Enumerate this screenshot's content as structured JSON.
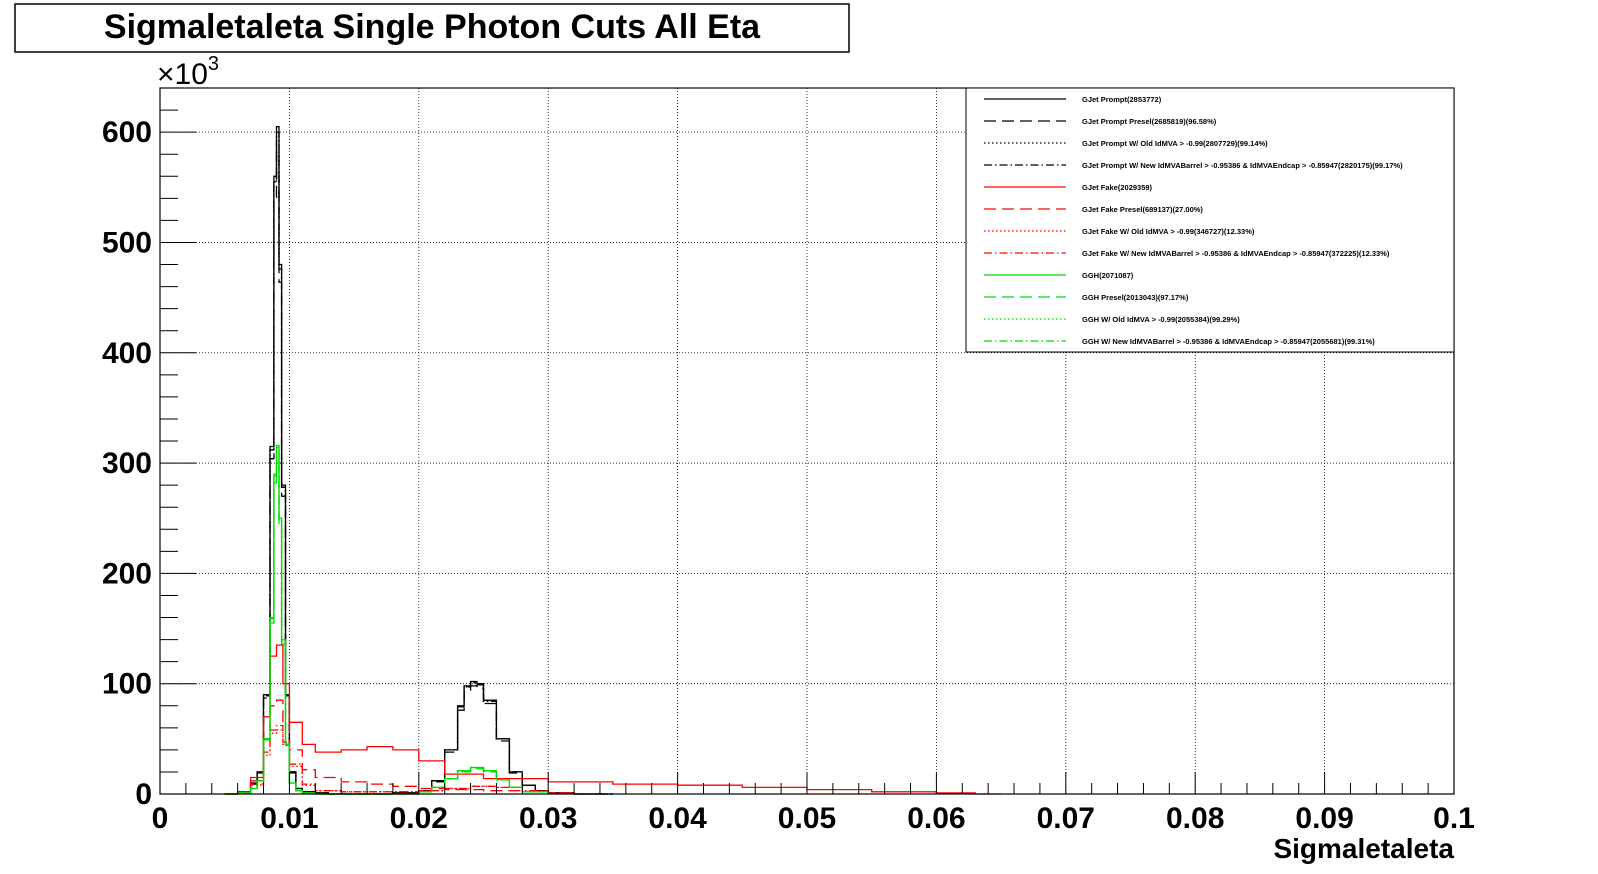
{
  "chart_data": {
    "type": "line",
    "title": "Sigmaletaleta Single Photon Cuts All Eta",
    "xlabel": "Sigmaletaleta",
    "ylabel": "",
    "y_exponent_label": "×10",
    "y_exponent_power": "3",
    "xlim": [
      0,
      0.1
    ],
    "ylim": [
      0,
      640
    ],
    "x_ticks": [
      0,
      0.01,
      0.02,
      0.03,
      0.04,
      0.05,
      0.06,
      0.07,
      0.08,
      0.09,
      0.1
    ],
    "x_tick_labels": [
      "0",
      "0.01",
      "0.02",
      "0.03",
      "0.04",
      "0.05",
      "0.06",
      "0.07",
      "0.08",
      "0.09",
      "0.1"
    ],
    "y_ticks": [
      0,
      100,
      200,
      300,
      400,
      500,
      600
    ],
    "y_tick_labels": [
      "0",
      "100",
      "200",
      "300",
      "400",
      "500",
      "600"
    ],
    "grid": true,
    "legend_position": "top-right",
    "series": [
      {
        "name": "GJet Prompt(2853772)",
        "color": "#000000",
        "style": "solid",
        "x": [
          0.005,
          0.006,
          0.007,
          0.0075,
          0.008,
          0.0085,
          0.0088,
          0.009,
          0.0092,
          0.0094,
          0.0097,
          0.01,
          0.0105,
          0.011,
          0.012,
          0.013,
          0.015,
          0.018,
          0.02,
          0.021,
          0.022,
          0.023,
          0.0235,
          0.024,
          0.0245,
          0.025,
          0.026,
          0.027,
          0.028,
          0.029,
          0.03,
          0.032,
          0.035
        ],
        "y": [
          0,
          2,
          10,
          20,
          90,
          315,
          560,
          605,
          480,
          280,
          90,
          20,
          5,
          2,
          1,
          0,
          0,
          1,
          3,
          12,
          40,
          80,
          98,
          102,
          100,
          85,
          50,
          20,
          8,
          3,
          1,
          0,
          0
        ]
      },
      {
        "name": "GJet Prompt Presel(2685819)(96.58%)",
        "color": "#000000",
        "style": "dashed",
        "x": [
          0.005,
          0.006,
          0.007,
          0.0075,
          0.008,
          0.0085,
          0.0088,
          0.009,
          0.0092,
          0.0094,
          0.0097,
          0.01,
          0.0105,
          0.011,
          0.012,
          0.013,
          0.015,
          0.018,
          0.02,
          0.021,
          0.022,
          0.023,
          0.0235,
          0.024,
          0.0245,
          0.025,
          0.026,
          0.027,
          0.028,
          0.029,
          0.03,
          0.032,
          0.035
        ],
        "y": [
          0,
          2,
          9,
          19,
          87,
          304,
          541,
          584,
          464,
          270,
          87,
          19,
          5,
          2,
          1,
          0,
          0,
          1,
          3,
          11,
          38,
          76,
          94,
          98,
          96,
          82,
          48,
          19,
          8,
          3,
          1,
          0,
          0
        ]
      },
      {
        "name": "GJet Prompt W/ Old IdMVA > -0.99(2807729)(99.14%)",
        "color": "#000000",
        "style": "dotted",
        "x": [
          0.005,
          0.006,
          0.007,
          0.0075,
          0.008,
          0.0085,
          0.0088,
          0.009,
          0.0092,
          0.0094,
          0.0097,
          0.01,
          0.0105,
          0.011,
          0.012,
          0.013,
          0.015,
          0.018,
          0.02,
          0.021,
          0.022,
          0.023,
          0.0235,
          0.024,
          0.0245,
          0.025,
          0.026,
          0.027,
          0.028,
          0.029,
          0.03,
          0.032,
          0.035
        ],
        "y": [
          0,
          2,
          10,
          20,
          89,
          312,
          555,
          600,
          476,
          278,
          89,
          20,
          5,
          2,
          1,
          0,
          0,
          1,
          3,
          12,
          40,
          79,
          97,
          101,
          99,
          84,
          50,
          20,
          8,
          3,
          1,
          0,
          0
        ]
      },
      {
        "name": "GJet Prompt W/ New IdMVABarrel > -0.95386 & IdMVAEndcap > -0.85947(2820175)(99.17%)",
        "color": "#000000",
        "style": "dashdot",
        "x": [
          0.005,
          0.006,
          0.007,
          0.0075,
          0.008,
          0.0085,
          0.0088,
          0.009,
          0.0092,
          0.0094,
          0.0097,
          0.01,
          0.0105,
          0.011,
          0.012,
          0.013,
          0.015,
          0.018,
          0.02,
          0.021,
          0.022,
          0.023,
          0.0235,
          0.024,
          0.0245,
          0.025,
          0.026,
          0.027,
          0.028,
          0.029,
          0.03,
          0.032,
          0.035
        ],
        "y": [
          0,
          2,
          10,
          20,
          89,
          312,
          555,
          600,
          476,
          278,
          89,
          20,
          5,
          2,
          1,
          0,
          0,
          1,
          3,
          12,
          40,
          79,
          97,
          101,
          99,
          84,
          50,
          20,
          8,
          3,
          1,
          0,
          0
        ]
      },
      {
        "name": "GJet Fake(2029359)",
        "color": "#ff0000",
        "style": "solid",
        "x": [
          0.005,
          0.006,
          0.007,
          0.008,
          0.0085,
          0.009,
          0.0095,
          0.01,
          0.011,
          0.012,
          0.014,
          0.016,
          0.018,
          0.02,
          0.022,
          0.025,
          0.03,
          0.035,
          0.04,
          0.045,
          0.05,
          0.055,
          0.06,
          0.063,
          0.065
        ],
        "y": [
          0,
          2,
          15,
          70,
          125,
          135,
          100,
          65,
          45,
          38,
          40,
          43,
          40,
          30,
          18,
          14,
          11,
          9,
          8,
          6,
          4,
          2,
          1,
          0,
          0
        ]
      },
      {
        "name": "GJet Fake Presel(689137)(27.00%)",
        "color": "#ff0000",
        "style": "dashed",
        "x": [
          0.005,
          0.006,
          0.007,
          0.008,
          0.0085,
          0.009,
          0.0095,
          0.01,
          0.011,
          0.012,
          0.014,
          0.016,
          0.018,
          0.02,
          0.022,
          0.025,
          0.028,
          0.03,
          0.032,
          0.035
        ],
        "y": [
          0,
          2,
          12,
          50,
          80,
          85,
          65,
          40,
          22,
          15,
          11,
          9,
          7,
          5,
          4,
          3,
          2,
          1,
          0,
          0
        ]
      },
      {
        "name": "GJet Fake W/ Old IdMVA > -0.99(346727)(12.33%)",
        "color": "#ff0000",
        "style": "dotted",
        "x": [
          0.005,
          0.006,
          0.007,
          0.008,
          0.0085,
          0.009,
          0.0095,
          0.01,
          0.011,
          0.012,
          0.014,
          0.016,
          0.018,
          0.02,
          0.022,
          0.024,
          0.026,
          0.028,
          0.03,
          0.032
        ],
        "y": [
          0,
          1,
          8,
          35,
          55,
          58,
          45,
          25,
          8,
          3,
          2,
          2,
          2,
          3,
          5,
          7,
          6,
          3,
          1,
          0
        ]
      },
      {
        "name": "GJet Fake W/ New IdMVABarrel > -0.95386 & IdMVAEndcap > -0.85947(372225)(12.33%)",
        "color": "#ff0000",
        "style": "dashdot",
        "x": [
          0.005,
          0.006,
          0.007,
          0.008,
          0.0085,
          0.009,
          0.0095,
          0.01,
          0.011,
          0.012,
          0.014,
          0.016,
          0.018,
          0.02,
          0.022,
          0.024,
          0.026,
          0.028,
          0.03,
          0.032
        ],
        "y": [
          0,
          1,
          9,
          38,
          58,
          62,
          47,
          27,
          9,
          3,
          2,
          2,
          2,
          3,
          5,
          7,
          6,
          3,
          1,
          0
        ]
      },
      {
        "name": "GGH(2071087)",
        "color": "#00dd00",
        "style": "solid",
        "x": [
          0.005,
          0.006,
          0.007,
          0.0075,
          0.008,
          0.0085,
          0.0088,
          0.009,
          0.0092,
          0.0094,
          0.0097,
          0.01,
          0.0105,
          0.011,
          0.012,
          0.015,
          0.018,
          0.02,
          0.021,
          0.022,
          0.023,
          0.024,
          0.025,
          0.026,
          0.027,
          0.028,
          0.03
        ],
        "y": [
          0,
          1,
          5,
          12,
          50,
          160,
          290,
          316,
          250,
          140,
          45,
          10,
          3,
          1,
          0,
          0,
          0,
          2,
          6,
          14,
          21,
          24,
          21,
          13,
          6,
          2,
          0
        ]
      },
      {
        "name": "GGH Presel(2013043)(97.17%)",
        "color": "#00dd00",
        "style": "dashed",
        "x": [
          0.005,
          0.006,
          0.007,
          0.0075,
          0.008,
          0.0085,
          0.0088,
          0.009,
          0.0092,
          0.0094,
          0.0097,
          0.01,
          0.0105,
          0.011,
          0.012,
          0.015,
          0.018,
          0.02,
          0.021,
          0.022,
          0.023,
          0.024,
          0.025,
          0.026,
          0.027,
          0.028,
          0.03
        ],
        "y": [
          0,
          1,
          5,
          12,
          49,
          155,
          282,
          307,
          243,
          136,
          44,
          10,
          3,
          1,
          0,
          0,
          0,
          2,
          6,
          14,
          20,
          23,
          20,
          13,
          6,
          2,
          0
        ]
      },
      {
        "name": "GGH W/ Old IdMVA > -0.99(2055384)(99.29%)",
        "color": "#00dd00",
        "style": "dotted",
        "x": [
          0.005,
          0.006,
          0.007,
          0.0075,
          0.008,
          0.0085,
          0.0088,
          0.009,
          0.0092,
          0.0094,
          0.0097,
          0.01,
          0.0105,
          0.011,
          0.012,
          0.015,
          0.018,
          0.02,
          0.021,
          0.022,
          0.023,
          0.024,
          0.025,
          0.026,
          0.027,
          0.028,
          0.03
        ],
        "y": [
          0,
          1,
          5,
          12,
          50,
          159,
          288,
          314,
          248,
          139,
          45,
          10,
          3,
          1,
          0,
          0,
          0,
          2,
          6,
          14,
          21,
          24,
          21,
          13,
          6,
          2,
          0
        ]
      },
      {
        "name": "GGH W/ New IdMVABarrel > -0.95386 & IdMVAEndcap > -0.85947(2055681)(99.31%)",
        "color": "#00dd00",
        "style": "dashdot",
        "x": [
          0.005,
          0.006,
          0.007,
          0.0075,
          0.008,
          0.0085,
          0.0088,
          0.009,
          0.0092,
          0.0094,
          0.0097,
          0.01,
          0.0105,
          0.011,
          0.012,
          0.015,
          0.018,
          0.02,
          0.021,
          0.022,
          0.023,
          0.024,
          0.025,
          0.026,
          0.027,
          0.028,
          0.03
        ],
        "y": [
          0,
          1,
          5,
          12,
          50,
          159,
          288,
          314,
          248,
          139,
          45,
          10,
          3,
          1,
          0,
          0,
          0,
          2,
          6,
          14,
          21,
          24,
          21,
          13,
          6,
          2,
          0
        ]
      }
    ]
  }
}
